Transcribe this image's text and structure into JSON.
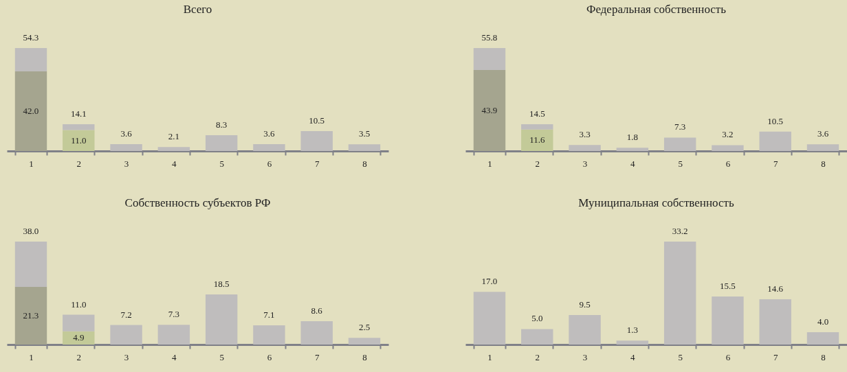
{
  "chart_data": [
    {
      "type": "bar",
      "title": "Всего",
      "categories": [
        "1",
        "2",
        "3",
        "4",
        "5",
        "6",
        "7",
        "8"
      ],
      "stacked": true,
      "series": [
        {
          "colors": [
            "#a5a58f",
            "#c3ca98",
            null,
            null,
            null,
            null,
            null,
            null
          ],
          "values": [
            42.0,
            11.0,
            null,
            null,
            null,
            null,
            null,
            null
          ],
          "value_labels": [
            "42.0",
            "11.0",
            null,
            null,
            null,
            null,
            null,
            null
          ]
        },
        {
          "color": "#bfbdbd",
          "values": [
            12.3,
            3.1,
            3.6,
            2.1,
            8.3,
            3.6,
            10.5,
            3.5
          ]
        }
      ],
      "totals": [
        "54.3",
        "14.1",
        "3.6",
        "2.1",
        "8.3",
        "3.6",
        "10.5",
        "3.5"
      ]
    },
    {
      "type": "bar",
      "title": "Федеральная собственность",
      "categories": [
        "1",
        "2",
        "3",
        "4",
        "5",
        "6",
        "7",
        "8"
      ],
      "stacked": true,
      "series": [
        {
          "colors": [
            "#a5a58f",
            "#c3ca98",
            null,
            null,
            null,
            null,
            null,
            null
          ],
          "values": [
            43.9,
            11.6,
            null,
            null,
            null,
            null,
            null,
            null
          ],
          "value_labels": [
            "43.9",
            "11.6",
            null,
            null,
            null,
            null,
            null,
            null
          ]
        },
        {
          "color": "#bfbdbd",
          "values": [
            11.9,
            2.9,
            3.3,
            1.8,
            7.3,
            3.2,
            10.5,
            3.6
          ]
        }
      ],
      "totals": [
        "55.8",
        "14.5",
        "3.3",
        "1.8",
        "7.3",
        "3.2",
        "10.5",
        "3.6"
      ]
    },
    {
      "type": "bar",
      "title": "Собственность субъектов РФ",
      "categories": [
        "1",
        "2",
        "3",
        "4",
        "5",
        "6",
        "7",
        "8"
      ],
      "stacked": true,
      "series": [
        {
          "colors": [
            "#a5a58f",
            "#c3ca98",
            null,
            null,
            null,
            null,
            null,
            null
          ],
          "values": [
            21.3,
            4.9,
            null,
            null,
            null,
            null,
            null,
            null
          ],
          "value_labels": [
            "21.3",
            "4.9",
            null,
            null,
            null,
            null,
            null,
            null
          ]
        },
        {
          "color": "#bfbdbd",
          "values": [
            16.7,
            6.1,
            7.2,
            7.3,
            18.5,
            7.1,
            8.6,
            2.5
          ]
        }
      ],
      "totals": [
        "38.0",
        "11.0",
        "7.2",
        "7.3",
        "18.5",
        "7.1",
        "8.6",
        "2.5"
      ]
    },
    {
      "type": "bar",
      "title": "Муниципальная собственность",
      "categories": [
        "1",
        "2",
        "3",
        "4",
        "5",
        "6",
        "7",
        "8"
      ],
      "series": [
        {
          "color": "#bfbdbd",
          "values": [
            17.0,
            5.0,
            9.5,
            1.3,
            33.2,
            15.5,
            14.6,
            4.0
          ],
          "value_labels": [
            "17.0",
            "5.0",
            "9.5",
            "1.3",
            "33.2",
            "15.5",
            "14.6",
            "4.0"
          ]
        }
      ]
    }
  ]
}
